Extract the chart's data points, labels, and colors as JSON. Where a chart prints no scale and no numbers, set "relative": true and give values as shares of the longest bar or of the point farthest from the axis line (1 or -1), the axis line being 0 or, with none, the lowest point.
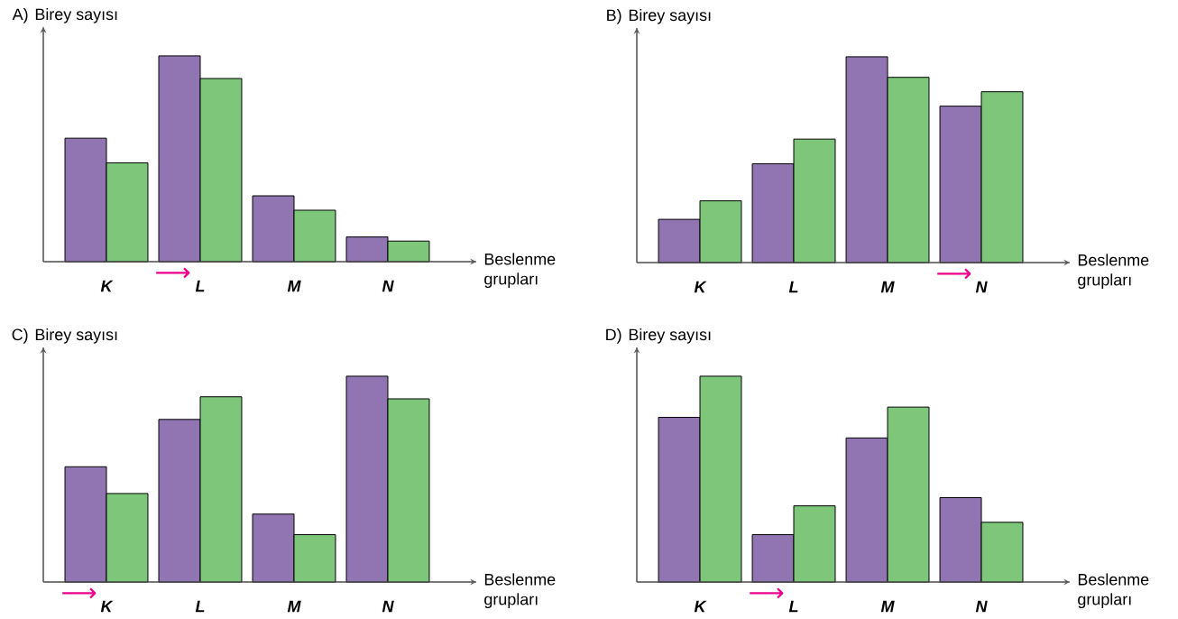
{
  "chart_data": [
    {
      "type": "bar",
      "title": "A)",
      "ylabel": "Birey sayısı",
      "xlabel": "Beslenme grupları",
      "categories": [
        "K",
        "L",
        "M",
        "N"
      ],
      "relative": true,
      "series": [
        {
          "color": "#9175b2",
          "values": [
            0.6,
            1,
            0.32,
            0.12
          ]
        },
        {
          "color": "#7dc67a",
          "values": [
            0.48,
            0.89,
            0.25,
            0.1
          ]
        }
      ],
      "annotations": [
        "⟶"
      ]
    },
    {
      "type": "bar",
      "title": "B)",
      "ylabel": "Birey sayısı",
      "xlabel": "Beslenme grupları",
      "categories": [
        "K",
        "L",
        "M",
        "N"
      ],
      "relative": true,
      "series": [
        {
          "color": "#9175b2",
          "values": [
            0.21,
            0.48,
            1,
            0.76
          ]
        },
        {
          "color": "#7dc67a",
          "values": [
            0.3,
            0.6,
            0.9,
            0.83
          ]
        }
      ],
      "annotations": [
        "⟶"
      ]
    },
    {
      "type": "bar",
      "title": "C)",
      "ylabel": "Birey sayısı",
      "xlabel": "Beslenme grupları",
      "categories": [
        "K",
        "L",
        "M",
        "N"
      ],
      "relative": true,
      "series": [
        {
          "color": "#9175b2",
          "values": [
            0.56,
            0.79,
            0.33,
            1
          ]
        },
        {
          "color": "#7dc67a",
          "values": [
            0.43,
            0.9,
            0.23,
            0.89
          ]
        }
      ],
      "annotations": [
        "⟶"
      ]
    },
    {
      "type": "bar",
      "title": "D)",
      "ylabel": "Birey sayısı",
      "xlabel": "Beslenme grupları",
      "categories": [
        "K",
        "L",
        "M",
        "N"
      ],
      "relative": true,
      "series": [
        {
          "color": "#9175b2",
          "values": [
            0.8,
            0.23,
            0.7,
            0.41
          ]
        },
        {
          "color": "#7dc67a",
          "values": [
            1,
            0.37,
            0.85,
            0.29
          ]
        }
      ],
      "annotations": [
        "⟶"
      ]
    }
  ]
}
